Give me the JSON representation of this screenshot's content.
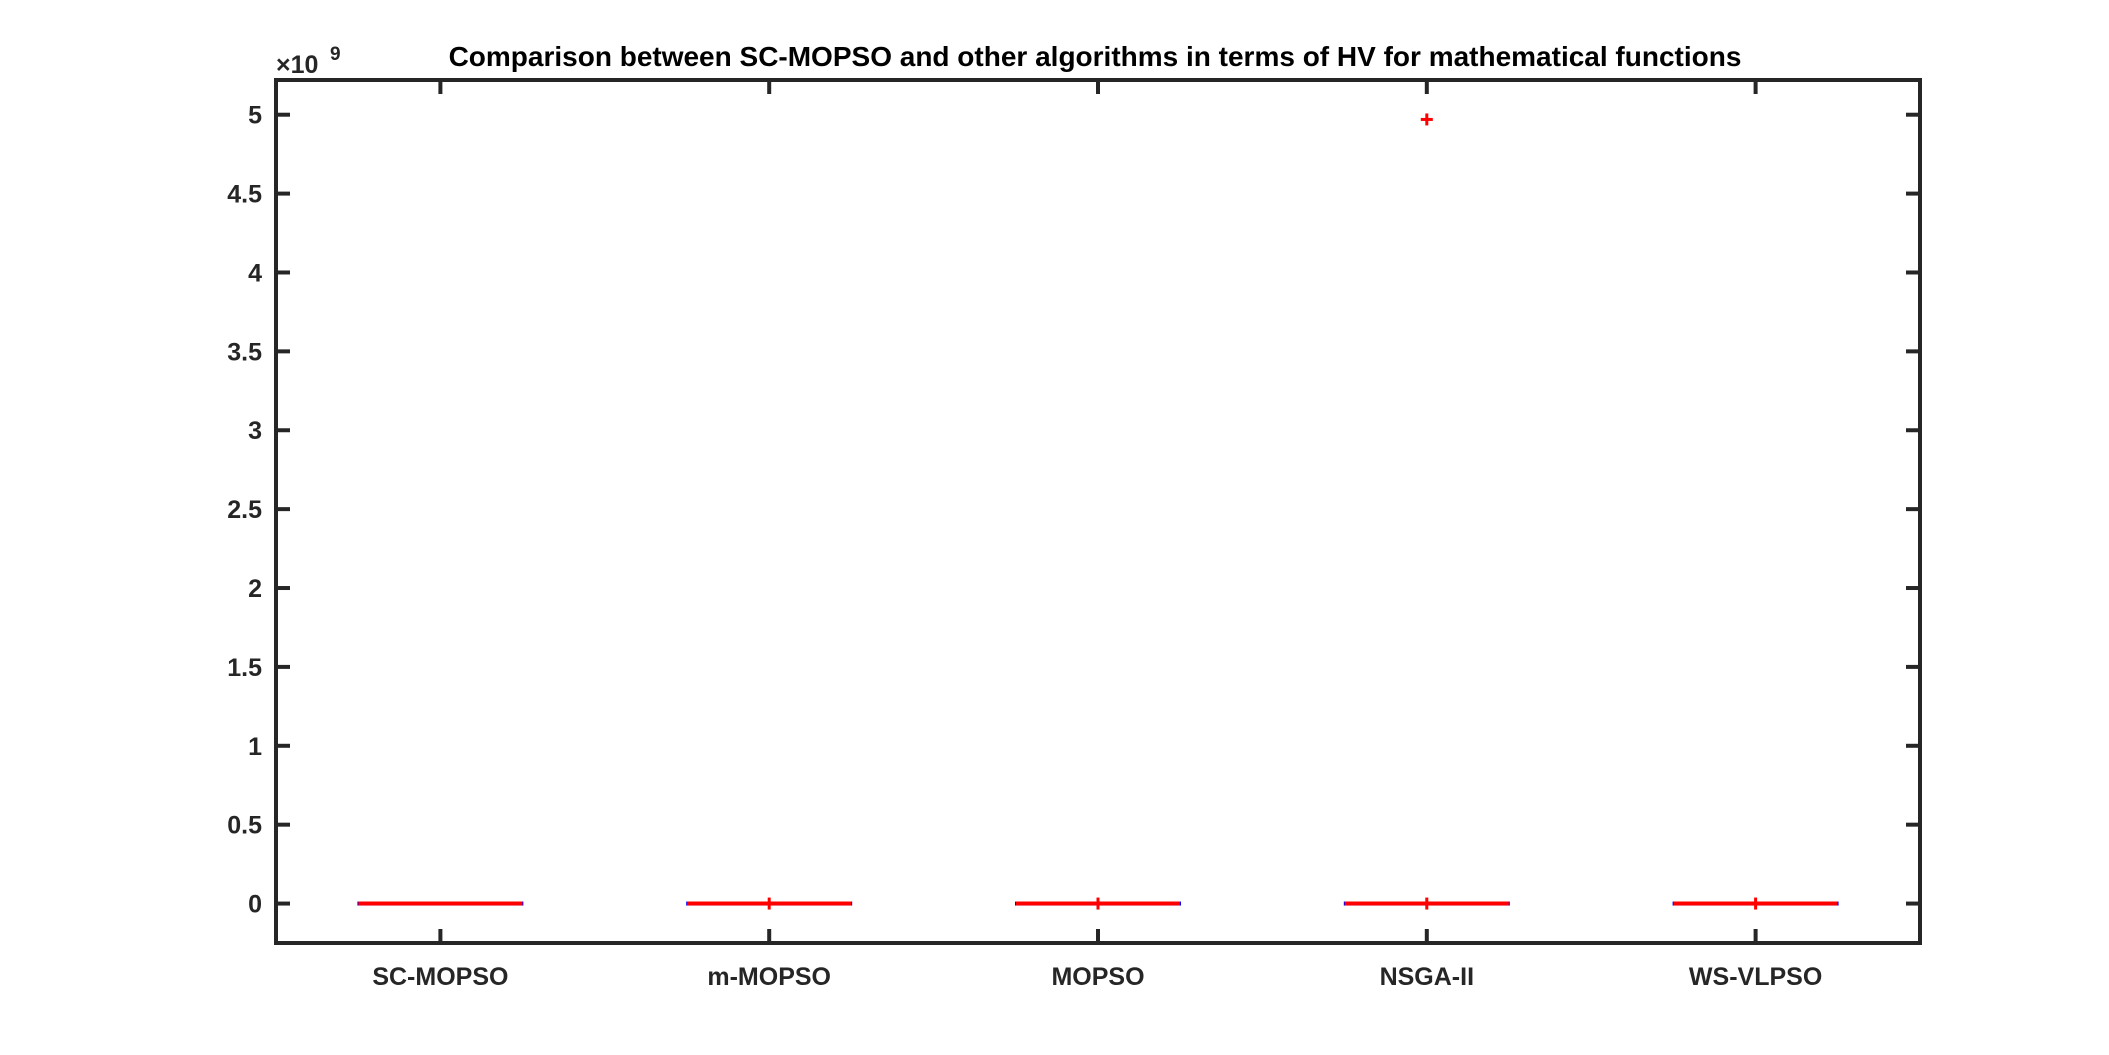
{
  "chart_data": {
    "type": "box",
    "title": "Comparison between SC-MOPSO and other algorithms in terms of HV for mathematical functions",
    "xlabel": "",
    "ylabel": "",
    "categories": [
      "SC-MOPSO",
      "m-MOPSO",
      "MOPSO",
      "NSGA-II",
      "WS-VLPSO"
    ],
    "y_multiplier": {
      "base": "×10",
      "exponent": "9"
    },
    "ylim": [
      -0.25,
      5.22
    ],
    "yticks": [
      0,
      0.5,
      1,
      1.5,
      2,
      2.5,
      3,
      3.5,
      4,
      4.5,
      5
    ],
    "ytick_labels": [
      "0",
      "0.5",
      "1",
      "1.5",
      "2",
      "2.5",
      "3",
      "3.5",
      "4",
      "4.5",
      "5"
    ],
    "boxes": [
      {
        "category": "SC-MOPSO",
        "median": 0.0,
        "q1": 0.0,
        "q3": 0.0,
        "whisker_low": 0.0,
        "whisker_high": 0.0,
        "outliers": []
      },
      {
        "category": "m-MOPSO",
        "median": 0.0,
        "q1": 0.0,
        "q3": 0.0,
        "whisker_low": 0.0,
        "whisker_high": 0.0,
        "outliers": [
          0.0
        ]
      },
      {
        "category": "MOPSO",
        "median": 0.0,
        "q1": 0.0,
        "q3": 0.0,
        "whisker_low": 0.0,
        "whisker_high": 0.0,
        "outliers": [
          0.0
        ]
      },
      {
        "category": "NSGA-II",
        "median": 0.0,
        "q1": 0.0,
        "q3": 0.0,
        "whisker_low": 0.0,
        "whisker_high": 0.0,
        "outliers": [
          0.0,
          4.97
        ]
      },
      {
        "category": "WS-VLPSO",
        "median": 0.0,
        "q1": 0.0,
        "q3": 0.0,
        "whisker_low": 0.0,
        "whisker_high": 0.0,
        "outliers": [
          0.0
        ]
      }
    ],
    "grid": false,
    "colors": {
      "median": "#ff0000",
      "box": "#0000ff",
      "outlier": "#ff0000",
      "axis": "#262626"
    }
  }
}
